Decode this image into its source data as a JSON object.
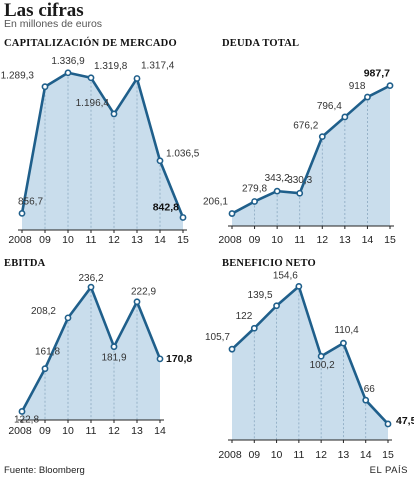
{
  "header": {
    "title": "Las cifras",
    "subtitle": "En millones de euros"
  },
  "footer": {
    "source": "Fuente: Bloomberg",
    "credit": "EL PAÍS"
  },
  "colors": {
    "line": "#1f5f8b",
    "fill": "#c9ddec",
    "axis": "#222222",
    "dash": "#8aa8c0"
  },
  "chart_data": [
    {
      "type": "area",
      "title": "CAPITALIZACIÓN DE MERCADO",
      "categories": [
        "2008",
        "09",
        "10",
        "11",
        "12",
        "13",
        "14",
        "15"
      ],
      "labels": [
        "856,7",
        "1.289,3",
        "1.336,9",
        "1.319,8",
        "1.196,4",
        "1.317,4",
        "1.036,5",
        "842,8"
      ],
      "values": [
        856.7,
        1289.3,
        1336.9,
        1319.8,
        1196.4,
        1317.4,
        1036.5,
        842.8
      ],
      "highlight_last": true
    },
    {
      "type": "area",
      "title": "DEUDA TOTAL",
      "categories": [
        "2008",
        "09",
        "10",
        "11",
        "12",
        "13",
        "14",
        "15"
      ],
      "labels": [
        "206,1",
        "279,8",
        "343,2",
        "330,3",
        "676,2",
        "796,4",
        "918",
        "987,7"
      ],
      "values": [
        206.1,
        279.8,
        343.2,
        330.3,
        676.2,
        796.4,
        918,
        987.7
      ],
      "highlight_last": true
    },
    {
      "type": "area",
      "title": "EBITDA",
      "categories": [
        "2008",
        "09",
        "10",
        "11",
        "12",
        "13",
        "14"
      ],
      "labels": [
        "122,8",
        "161,8",
        "208,2",
        "236,2",
        "181,9",
        "222,9",
        "170,8"
      ],
      "values": [
        122.8,
        161.8,
        208.2,
        236.2,
        181.9,
        222.9,
        170.8
      ],
      "highlight_last": true
    },
    {
      "type": "area",
      "title": "BENEFICIO NETO",
      "categories": [
        "2008",
        "09",
        "10",
        "11",
        "12",
        "13",
        "14",
        "15"
      ],
      "labels": [
        "105,7",
        "122",
        "139,5",
        "154,6",
        "100,2",
        "110,4",
        "66",
        "47,5"
      ],
      "values": [
        105.7,
        122,
        139.5,
        154.6,
        100.2,
        110.4,
        66,
        47.5
      ],
      "highlight_last": true
    }
  ]
}
